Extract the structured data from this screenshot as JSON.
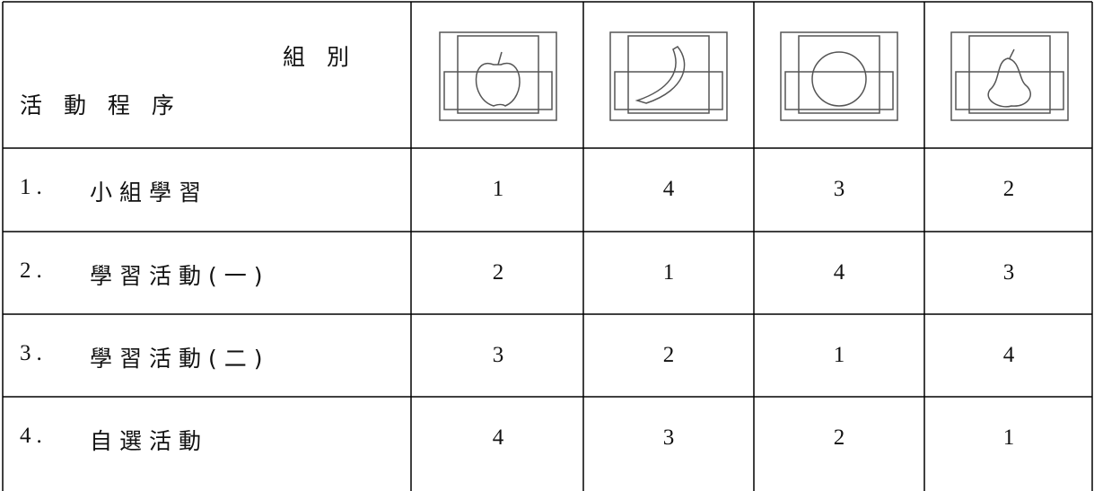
{
  "table": {
    "header": {
      "group_label": "組 別",
      "activity_label": "活 動 程 序"
    },
    "rows": [
      {
        "index": "1.",
        "activity": "小組學習",
        "values": [
          1,
          4,
          3,
          2
        ]
      },
      {
        "index": "2.",
        "activity": "學習活動(一)",
        "values": [
          2,
          1,
          4,
          3
        ]
      },
      {
        "index": "3.",
        "activity": "學習活動(二)",
        "values": [
          3,
          2,
          1,
          4
        ]
      },
      {
        "index": "4.",
        "activity": "自選活動",
        "values": [
          4,
          3,
          2,
          1
        ]
      }
    ]
  }
}
